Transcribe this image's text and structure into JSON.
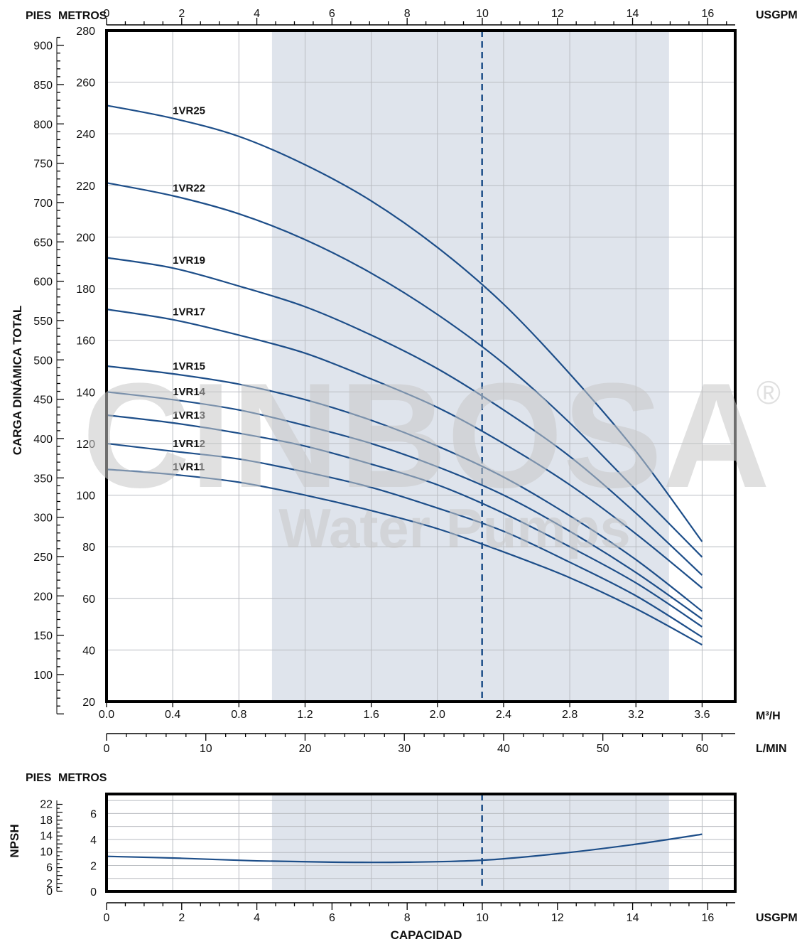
{
  "chart_data": [
    {
      "type": "line",
      "title": "",
      "xlabel": "M³/H",
      "ylabel": "CARGA DINÁMICA TOTAL",
      "x_range": [
        0,
        3.8
      ],
      "y_range": [
        20,
        280
      ],
      "x_ticks": [
        "0.0",
        "0.4",
        "0.8",
        "1.2",
        "1.6",
        "2.0",
        "2.4",
        "2.8",
        "3.2",
        "3.6"
      ],
      "y_ticks_metros": [
        "20",
        "40",
        "60",
        "80",
        "100",
        "120",
        "140",
        "160",
        "180",
        "200",
        "220",
        "240",
        "260",
        "280"
      ],
      "y_ticks_pies": [
        "100",
        "150",
        "200",
        "250",
        "300",
        "350",
        "400",
        "450",
        "500",
        "550",
        "600",
        "650",
        "700",
        "750",
        "800",
        "850",
        "900"
      ],
      "y_ticks_pies_values": [
        100,
        150,
        200,
        250,
        300,
        350,
        400,
        450,
        500,
        550,
        600,
        650,
        700,
        750,
        800,
        850,
        900
      ],
      "top_ticks_usgpm": [
        "0",
        "2",
        "4",
        "6",
        "8",
        "10",
        "12",
        "14",
        "16"
      ],
      "lmin_ticks": [
        "0",
        "10",
        "20",
        "30",
        "40",
        "50",
        "60"
      ],
      "units": {
        "pies": "PIES",
        "metros": "METROS",
        "usgpm": "USGPM",
        "m3h": "M³/H",
        "lmin": "L/MIN"
      },
      "operating_range_m3h": [
        1.0,
        3.4
      ],
      "design_point_m3h": 2.27,
      "grid": true,
      "series": [
        {
          "name": "1VR25",
          "x": [
            0,
            0.4,
            0.8,
            1.2,
            1.6,
            2.0,
            2.4,
            2.8,
            3.2,
            3.6
          ],
          "values": [
            251,
            246,
            239,
            228,
            214,
            196,
            174,
            147,
            117,
            82
          ]
        },
        {
          "name": "1VR22",
          "x": [
            0,
            0.4,
            0.8,
            1.2,
            1.6,
            2.0,
            2.4,
            2.8,
            3.2,
            3.6
          ],
          "values": [
            221,
            216,
            209,
            199,
            186,
            170,
            151,
            128,
            102,
            76
          ]
        },
        {
          "name": "1VR19",
          "x": [
            0,
            0.4,
            0.8,
            1.2,
            1.6,
            2.0,
            2.4,
            2.8,
            3.2,
            3.6
          ],
          "values": [
            192,
            188,
            181,
            173,
            162,
            149,
            133,
            115,
            93,
            69
          ]
        },
        {
          "name": "1VR17",
          "x": [
            0,
            0.4,
            0.8,
            1.2,
            1.6,
            2.0,
            2.4,
            2.8,
            3.2,
            3.6
          ],
          "values": [
            172,
            168,
            162,
            155,
            145,
            134,
            120,
            104,
            85,
            64
          ]
        },
        {
          "name": "1VR15",
          "x": [
            0,
            0.4,
            0.8,
            1.2,
            1.6,
            2.0,
            2.4,
            2.8,
            3.2,
            3.6
          ],
          "values": [
            150,
            147,
            143,
            137,
            129,
            119,
            107,
            92,
            75,
            55
          ]
        },
        {
          "name": "1VR14",
          "x": [
            0,
            0.4,
            0.8,
            1.2,
            1.6,
            2.0,
            2.4,
            2.8,
            3.2,
            3.6
          ],
          "values": [
            140,
            137,
            133,
            127,
            120,
            111,
            100,
            86,
            70,
            52
          ]
        },
        {
          "name": "1VR13",
          "x": [
            0,
            0.4,
            0.8,
            1.2,
            1.6,
            2.0,
            2.4,
            2.8,
            3.2,
            3.6
          ],
          "values": [
            131,
            128,
            124,
            119,
            112,
            104,
            93,
            80,
            66,
            49
          ]
        },
        {
          "name": "1VR12",
          "x": [
            0,
            0.4,
            0.8,
            1.2,
            1.6,
            2.0,
            2.4,
            2.8,
            3.2,
            3.6
          ],
          "values": [
            120,
            117,
            114,
            109,
            103,
            95,
            86,
            74,
            61,
            45
          ]
        },
        {
          "name": "1VR11",
          "x": [
            0,
            0.4,
            0.8,
            1.2,
            1.6,
            2.0,
            2.4,
            2.8,
            3.2,
            3.6
          ],
          "values": [
            110,
            108,
            105,
            100,
            94,
            87,
            78,
            68,
            56,
            42
          ]
        }
      ]
    },
    {
      "type": "line",
      "title": "",
      "xlabel": "CAPACIDAD",
      "ylabel": "NPSH",
      "x_unit": "USGPM",
      "x_range": [
        0,
        16.73
      ],
      "y_range": [
        0,
        7.5
      ],
      "x_ticks": [
        "0",
        "2",
        "4",
        "6",
        "8",
        "10",
        "12",
        "14",
        "16"
      ],
      "y_ticks_metros": [
        "0",
        "2",
        "4",
        "6"
      ],
      "y_ticks_pies": [
        "0",
        "2",
        "6",
        "10",
        "14",
        "18",
        "22"
      ],
      "y_ticks_pies_values": [
        0,
        2,
        6,
        10,
        14,
        18,
        22
      ],
      "units": {
        "pies": "PIES",
        "metros": "METROS",
        "usgpm": "USGPM"
      },
      "grid": true,
      "series": [
        {
          "name": "NPSH",
          "x": [
            0,
            2,
            4,
            6,
            8,
            10,
            12,
            14,
            15.85
          ],
          "values": [
            2.7,
            2.55,
            2.35,
            2.25,
            2.25,
            2.4,
            2.9,
            3.6,
            4.4
          ]
        }
      ]
    }
  ],
  "watermark": {
    "brand": "CINBOSA",
    "registered": "®",
    "tagline": "Water Pumps"
  }
}
